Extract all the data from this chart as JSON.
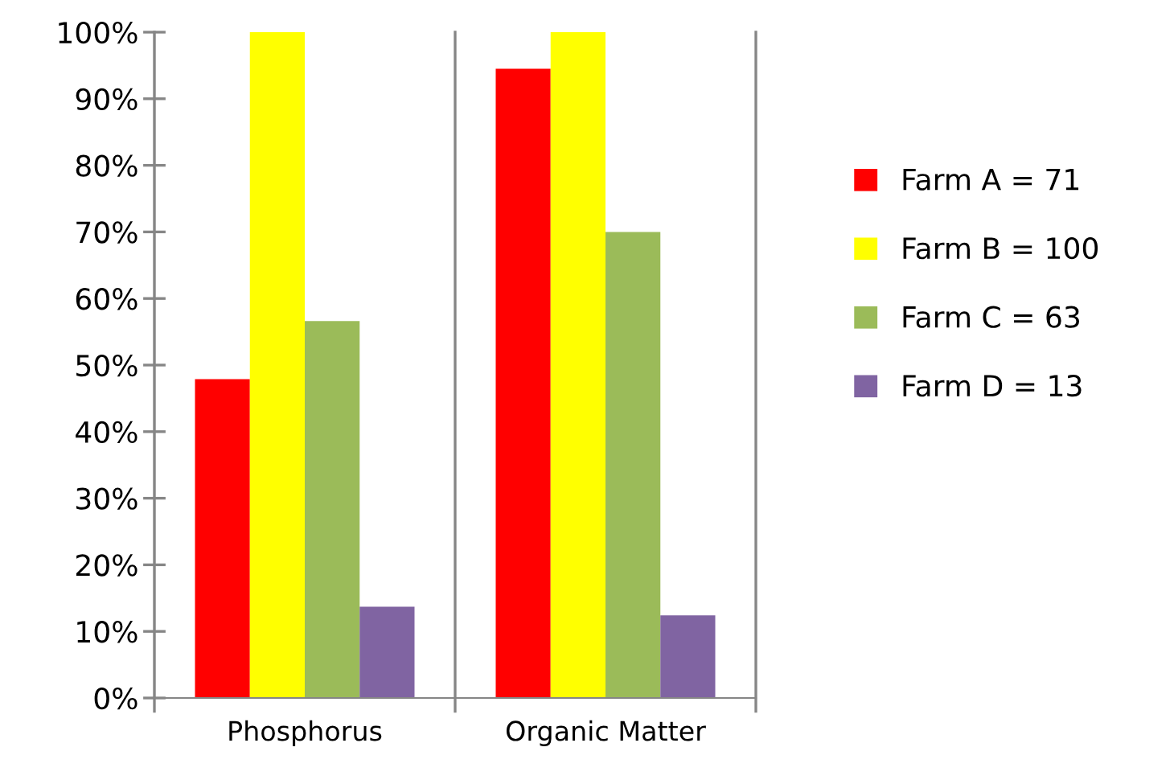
{
  "chart_data": {
    "type": "bar",
    "categories": [
      "Phosphorus",
      "Organic Matter"
    ],
    "series": [
      {
        "name": "Farm A = 71",
        "color": "#ff0000",
        "values": [
          47.9,
          94.5
        ]
      },
      {
        "name": "Farm B = 100",
        "color": "#ffff00",
        "values": [
          100,
          100
        ]
      },
      {
        "name": "Farm C = 63",
        "color": "#9bbb59",
        "values": [
          56.6,
          70
        ]
      },
      {
        "name": "Farm D = 13",
        "color": "#8064a2",
        "values": [
          13.7,
          12.4
        ]
      }
    ],
    "ylim": [
      0,
      100
    ],
    "yticks": [
      {
        "value": 0,
        "label": "0%"
      },
      {
        "value": 10,
        "label": "10%"
      },
      {
        "value": 20,
        "label": "20%"
      },
      {
        "value": 30,
        "label": "30%"
      },
      {
        "value": 40,
        "label": "40%"
      },
      {
        "value": 50,
        "label": "50%"
      },
      {
        "value": 60,
        "label": "60%"
      },
      {
        "value": 70,
        "label": "70%"
      },
      {
        "value": 80,
        "label": "80%"
      },
      {
        "value": 90,
        "label": "90%"
      },
      {
        "value": 100,
        "label": "100%"
      }
    ],
    "grid": "x",
    "legend": "right"
  }
}
